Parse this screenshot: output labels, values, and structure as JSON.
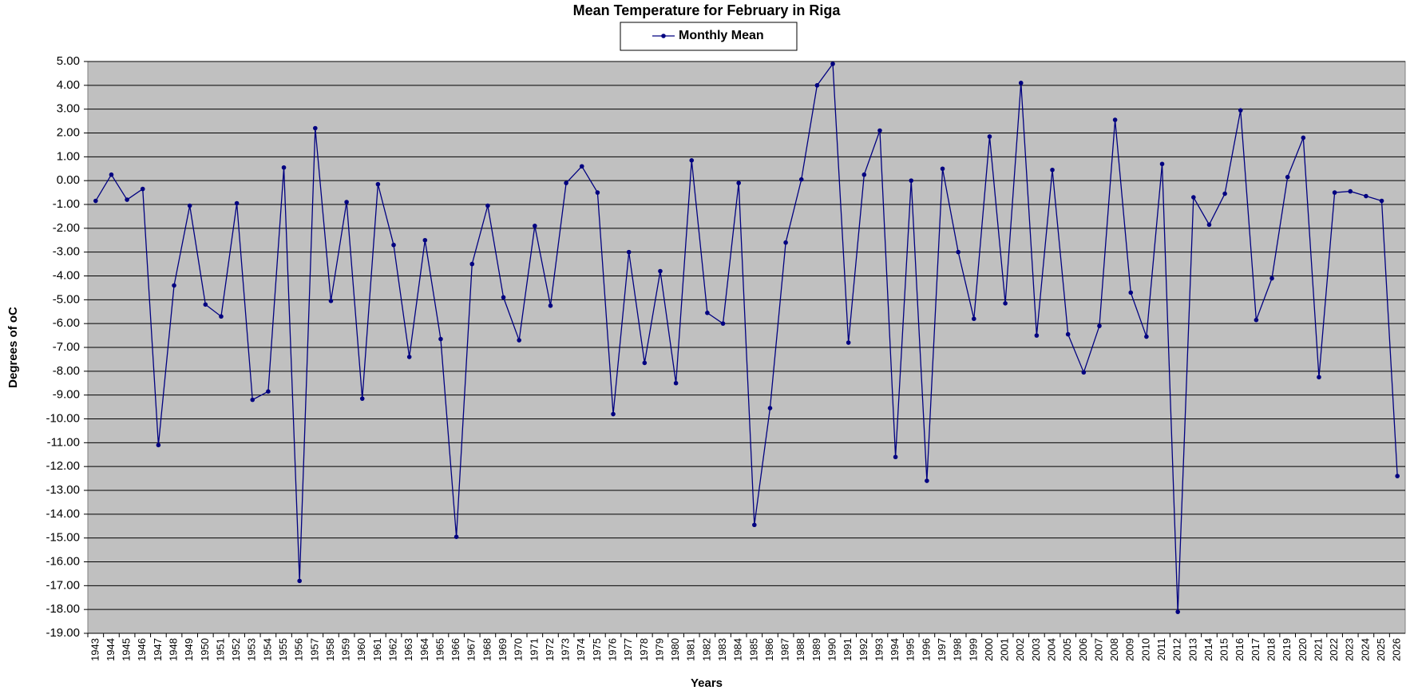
{
  "chart_data": {
    "type": "line",
    "title": "Mean Temperature for February in Riga",
    "x_label": "Years",
    "y_label": "Degrees of oC",
    "categories": [
      "1943",
      "1944",
      "1945",
      "1946",
      "1947",
      "1948",
      "1949",
      "1950",
      "1951",
      "1952",
      "1953",
      "1954",
      "1955",
      "1956",
      "1957",
      "1958",
      "1959",
      "1960",
      "1961",
      "1962",
      "1963",
      "1964",
      "1965",
      "1966",
      "1967",
      "1968",
      "1969",
      "1970",
      "1971",
      "1972",
      "1973",
      "1974",
      "1975",
      "1976",
      "1977",
      "1978",
      "1979",
      "1980",
      "1981",
      "1982",
      "1983",
      "1984",
      "1985",
      "1986",
      "1987",
      "1988",
      "1989",
      "1990",
      "1991",
      "1992",
      "1993",
      "1994",
      "1995",
      "1996",
      "1997",
      "1998",
      "1999",
      "2000",
      "2001",
      "2002",
      "2003",
      "2004",
      "2005",
      "2006",
      "2007",
      "2008",
      "2009",
      "2010",
      "2011",
      "2012",
      "2013",
      "2014",
      "2015",
      "2016",
      "2017",
      "2018",
      "2019",
      "2020",
      "2021",
      "2022",
      "2023",
      "2024",
      "2025",
      "2026"
    ],
    "series": [
      {
        "name": "Monthly Mean",
        "color": "#000080",
        "values": [
          -0.85,
          0.25,
          -0.8,
          -0.35,
          -11.1,
          -4.4,
          -1.05,
          -5.2,
          -5.7,
          -0.95,
          -9.2,
          -8.85,
          0.55,
          -16.8,
          2.2,
          -5.05,
          -0.9,
          -9.15,
          -0.15,
          -2.7,
          -7.4,
          -2.5,
          -6.65,
          -14.95,
          -3.5,
          -1.05,
          -4.9,
          -6.7,
          -1.9,
          -5.25,
          -0.1,
          0.6,
          -0.5,
          -9.8,
          -3.0,
          -7.65,
          -3.8,
          -8.5,
          0.85,
          -5.55,
          -6.0,
          -0.1,
          -14.45,
          -9.55,
          -2.6,
          0.05,
          4.0,
          4.9,
          -6.8,
          0.25,
          2.1,
          -11.6,
          0.0,
          -12.6,
          0.5,
          -3.0,
          -5.8,
          1.85,
          -5.15,
          4.1,
          -6.5,
          0.45,
          -6.45,
          -8.05,
          -6.1,
          2.55,
          -4.7,
          -6.55,
          0.7,
          -18.1,
          -0.7,
          -1.85,
          -0.55,
          2.95,
          -5.85,
          -4.1,
          0.15,
          1.8,
          -8.25,
          -0.5,
          -0.45,
          -0.65,
          -0.85,
          -12.4
        ]
      }
    ],
    "ylim": [
      -19,
      5
    ],
    "yticks": [
      {
        "value": 5,
        "label": "5.00"
      },
      {
        "value": 4,
        "label": "4.00"
      },
      {
        "value": 3,
        "label": "3.00"
      },
      {
        "value": 2,
        "label": "2.00"
      },
      {
        "value": 1,
        "label": "1.00"
      },
      {
        "value": 0,
        "label": "0.00"
      },
      {
        "value": -1,
        "label": "-1.00"
      },
      {
        "value": -2,
        "label": "-2.00"
      },
      {
        "value": -3,
        "label": "-3.00"
      },
      {
        "value": -4,
        "label": "-4.00"
      },
      {
        "value": -5,
        "label": "-5.00"
      },
      {
        "value": -6,
        "label": "-6.00"
      },
      {
        "value": -7,
        "label": "-7.00"
      },
      {
        "value": -8,
        "label": "-8.00"
      },
      {
        "value": -9,
        "label": "-9.00"
      },
      {
        "value": -10,
        "label": "-10.00"
      },
      {
        "value": -11,
        "label": "-11.00"
      },
      {
        "value": -12,
        "label": "-12.00"
      },
      {
        "value": -13,
        "label": "-13.00"
      },
      {
        "value": -14,
        "label": "-14.00"
      },
      {
        "value": -15,
        "label": "-15.00"
      },
      {
        "value": -16,
        "label": "-16.00"
      },
      {
        "value": -17,
        "label": "-17.00"
      },
      {
        "value": -18,
        "label": "-18.00"
      },
      {
        "value": -19,
        "label": "-19.00"
      }
    ],
    "grid": true,
    "plot_background": "#c0c0c0",
    "legend": "top"
  }
}
